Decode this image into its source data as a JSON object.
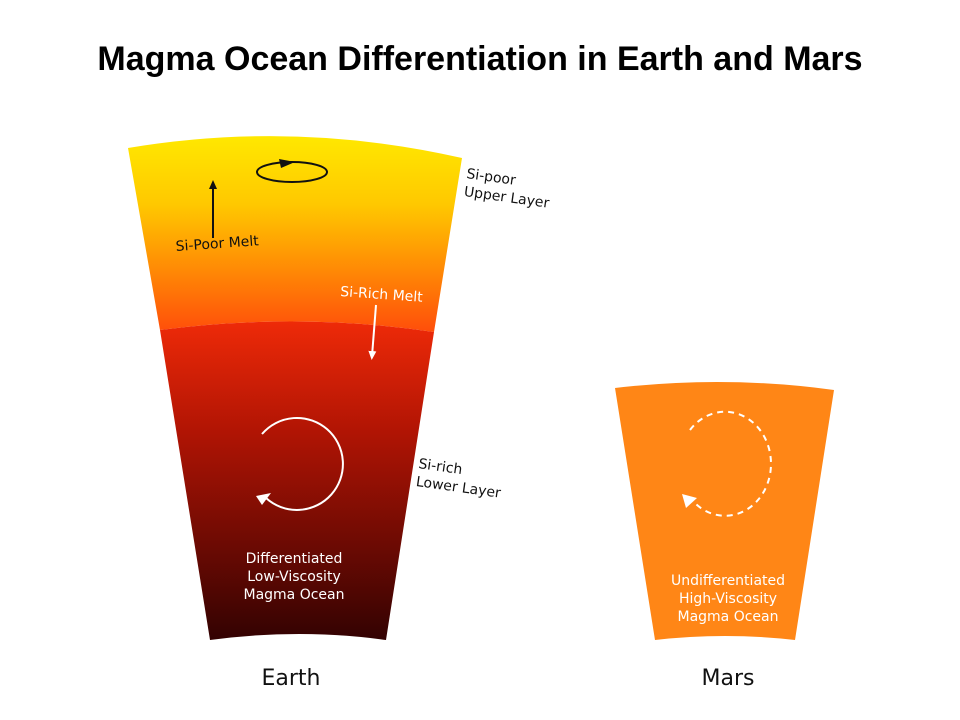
{
  "title": "Magma Ocean Differentiation in Earth and Mars",
  "earth": {
    "name": "Earth",
    "upper_layer_label": [
      "Si-poor",
      "Upper Layer"
    ],
    "lower_layer_label": [
      "Si-rich",
      "Lower Layer"
    ],
    "si_poor_melt": "Si-Poor Melt",
    "si_rich_melt": "Si-Rich Melt",
    "ocean_label": [
      "Differentiated",
      "Low-Viscosity",
      "Magma Ocean"
    ]
  },
  "mars": {
    "name": "Mars",
    "ocean_label": [
      "Undifferentiated",
      "High-Viscosity",
      "Magma Ocean"
    ]
  },
  "colors": {
    "earth_top": "#ffe000",
    "earth_mid": "#ff7a00",
    "earth_red": "#ee2a08",
    "earth_bottom": "#3a0202",
    "mars_fill": "#ff8616"
  }
}
